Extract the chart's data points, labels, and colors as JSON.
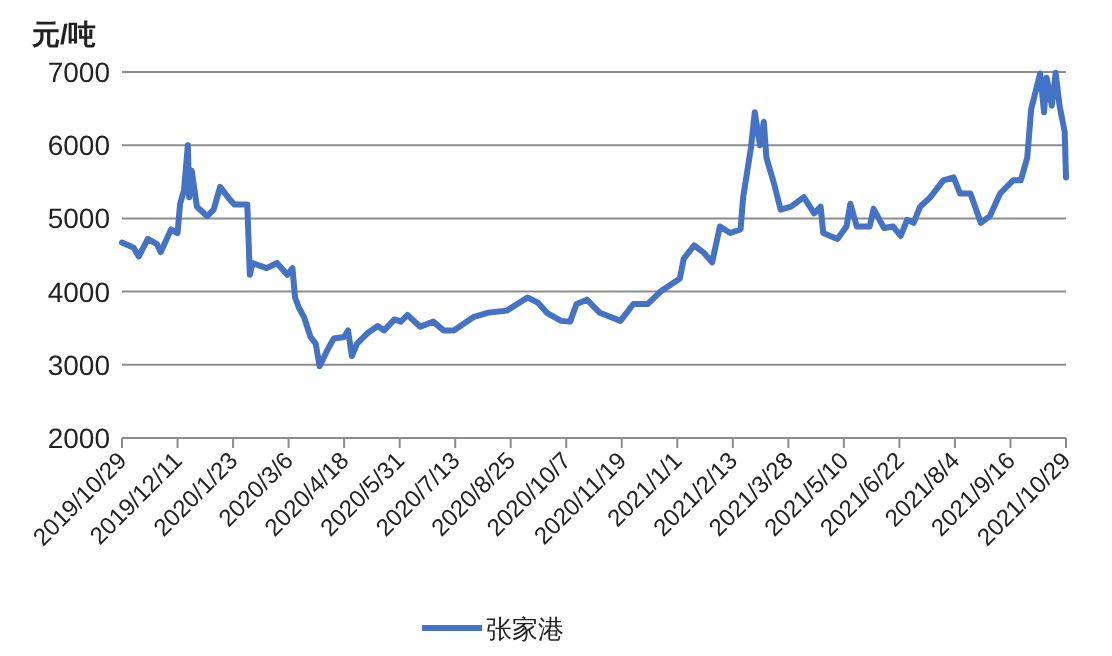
{
  "chart_data": {
    "type": "line",
    "ylabel": "元/吨",
    "grid": "y",
    "legend": "bottom",
    "marker": "none",
    "line_style": "solid",
    "xlim": [
      "2019-10-29",
      "2021-10-29"
    ],
    "ylim": [
      2000,
      7000
    ],
    "yticks": [
      2000,
      3000,
      4000,
      5000,
      6000,
      7000
    ],
    "xticks": [
      {
        "value": "2019-10-29",
        "label": "2019/10/29"
      },
      {
        "value": "2019-12-11",
        "label": "2019/12/11"
      },
      {
        "value": "2020-01-23",
        "label": "2020/1/23"
      },
      {
        "value": "2020-03-06",
        "label": "2020/3/6"
      },
      {
        "value": "2020-04-18",
        "label": "2020/4/18"
      },
      {
        "value": "2020-05-31",
        "label": "2020/5/31"
      },
      {
        "value": "2020-07-13",
        "label": "2020/7/13"
      },
      {
        "value": "2020-08-25",
        "label": "2020/8/25"
      },
      {
        "value": "2020-10-07",
        "label": "2020/10/7"
      },
      {
        "value": "2020-11-19",
        "label": "2020/11/19"
      },
      {
        "value": "2021-01-01",
        "label": "2021/1/1"
      },
      {
        "value": "2021-02-13",
        "label": "2021/2/13"
      },
      {
        "value": "2021-03-28",
        "label": "2021/3/28"
      },
      {
        "value": "2021-05-10",
        "label": "2021/5/10"
      },
      {
        "value": "2021-06-22",
        "label": "2021/6/22"
      },
      {
        "value": "2021-08-04",
        "label": "2021/8/4"
      },
      {
        "value": "2021-09-16",
        "label": "2021/9/16"
      },
      {
        "value": "2021-10-29",
        "label": "2021/10/29"
      }
    ],
    "series": [
      {
        "name": "张家港",
        "color": "#4472c4",
        "x": [
          "2019-10-29",
          "2019-11-07",
          "2019-11-11",
          "2019-11-18",
          "2019-11-25",
          "2019-11-28",
          "2019-12-06",
          "2019-12-11",
          "2019-12-13",
          "2019-12-16",
          "2019-12-19",
          "2019-12-20",
          "2019-12-22",
          "2019-12-26",
          "2020-01-03",
          "2020-01-08",
          "2020-01-13",
          "2020-01-19",
          "2020-01-24",
          "2020-02-03",
          "2020-02-05",
          "2020-02-07",
          "2020-02-18",
          "2020-02-26",
          "2020-03-05",
          "2020-03-09",
          "2020-03-11",
          "2020-03-14",
          "2020-03-18",
          "2020-03-23",
          "2020-03-27",
          "2020-03-30",
          "2020-04-05",
          "2020-04-10",
          "2020-04-18",
          "2020-04-21",
          "2020-04-24",
          "2020-04-28",
          "2020-05-06",
          "2020-05-14",
          "2020-05-19",
          "2020-05-27",
          "2020-06-01",
          "2020-06-06",
          "2020-06-16",
          "2020-06-26",
          "2020-07-04",
          "2020-07-12",
          "2020-07-17",
          "2020-07-27",
          "2020-08-07",
          "2020-08-22",
          "2020-09-07",
          "2020-09-15",
          "2020-09-22",
          "2020-10-03",
          "2020-10-10",
          "2020-10-15",
          "2020-10-23",
          "2020-11-02",
          "2020-11-18",
          "2020-11-28",
          "2020-12-09",
          "2020-12-19",
          "2021-01-03",
          "2021-01-06",
          "2021-01-14",
          "2021-01-21",
          "2021-01-28",
          "2021-02-03",
          "2021-02-11",
          "2021-02-19",
          "2021-02-21",
          "2021-02-27",
          "2021-03-02",
          "2021-03-06",
          "2021-03-09",
          "2021-03-11",
          "2021-03-17",
          "2021-03-22",
          "2021-03-30",
          "2021-04-09",
          "2021-04-17",
          "2021-04-22",
          "2021-04-24",
          "2021-05-05",
          "2021-05-12",
          "2021-05-15",
          "2021-05-20",
          "2021-05-30",
          "2021-06-02",
          "2021-06-10",
          "2021-06-17",
          "2021-06-23",
          "2021-06-28",
          "2021-07-03",
          "2021-07-08",
          "2021-07-16",
          "2021-07-26",
          "2021-08-03",
          "2021-08-08",
          "2021-08-16",
          "2021-08-24",
          "2021-08-31",
          "2021-09-08",
          "2021-09-18",
          "2021-09-24",
          "2021-09-29",
          "2021-10-02",
          "2021-10-09",
          "2021-10-12",
          "2021-10-14",
          "2021-10-18",
          "2021-10-21",
          "2021-10-24",
          "2021-10-28",
          "2021-10-29"
        ],
        "values": [
          4670,
          4600,
          4480,
          4720,
          4650,
          4540,
          4850,
          4800,
          5200,
          5380,
          6000,
          5290,
          5650,
          5160,
          5030,
          5120,
          5430,
          5290,
          5190,
          5190,
          4230,
          4390,
          4320,
          4390,
          4230,
          4320,
          3920,
          3780,
          3650,
          3380,
          3290,
          2980,
          3200,
          3360,
          3380,
          3470,
          3120,
          3290,
          3430,
          3530,
          3470,
          3620,
          3590,
          3680,
          3520,
          3590,
          3470,
          3470,
          3530,
          3650,
          3710,
          3740,
          3920,
          3850,
          3710,
          3600,
          3590,
          3830,
          3890,
          3710,
          3600,
          3830,
          3830,
          4000,
          4180,
          4450,
          4630,
          4540,
          4400,
          4890,
          4800,
          4850,
          5290,
          5960,
          6450,
          6000,
          6320,
          5830,
          5470,
          5120,
          5160,
          5290,
          5070,
          5160,
          4800,
          4720,
          4890,
          5200,
          4890,
          4890,
          5130,
          4870,
          4890,
          4760,
          4980,
          4940,
          5160,
          5290,
          5520,
          5560,
          5340,
          5340,
          4940,
          5030,
          5340,
          5520,
          5520,
          5830,
          6490,
          6980,
          6450,
          6920,
          6540,
          6990,
          6540,
          6180,
          5560
        ]
      }
    ]
  }
}
